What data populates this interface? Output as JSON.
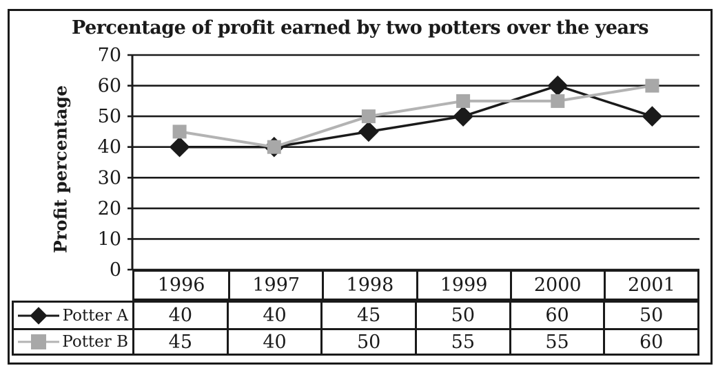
{
  "window": {
    "background": "#ffffff",
    "frame_border_color": "#1a1a1a"
  },
  "chart_data": {
    "type": "line",
    "title": "Percentage of profit earned by two potters over the years",
    "ylabel": "Profit percentage",
    "xlabel": "",
    "categories": [
      "1996",
      "1997",
      "1998",
      "1999",
      "2000",
      "2001"
    ],
    "series": [
      {
        "name": "Potter A",
        "values": [
          40,
          40,
          45,
          50,
          60,
          50
        ],
        "line_color": "#1a1a1a",
        "marker": "diamond",
        "marker_color": "#1a1a1a"
      },
      {
        "name": "Potter B",
        "values": [
          45,
          40,
          50,
          55,
          55,
          60
        ],
        "line_color": "#b3b3b3",
        "marker": "square",
        "marker_color": "#a8a8a8"
      }
    ],
    "ylim": [
      0,
      70
    ],
    "yticks": [
      0,
      10,
      20,
      30,
      40,
      50,
      60,
      70
    ],
    "grid": true,
    "gridline_color": "#1a1a1a",
    "legend_position": "table-left",
    "data_table_shown": true
  }
}
